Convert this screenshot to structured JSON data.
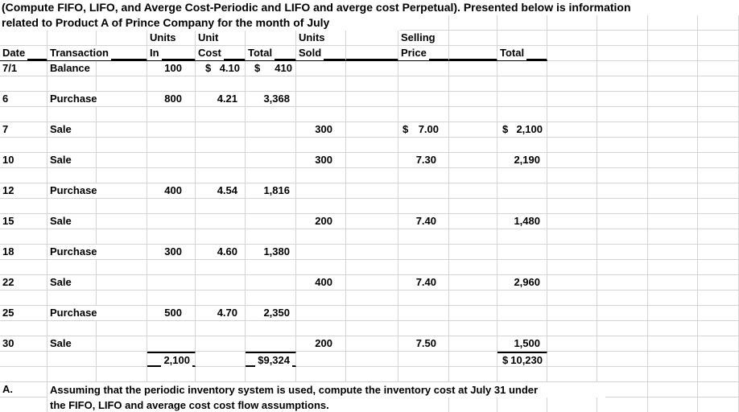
{
  "title": {
    "line1": "(Compute FIFO, LIFO, and Averge Cost-Periodic and  LIFO  and averge cost Perpetual). Presented below is information",
    "line2": "related to Product A of Prince Company for the month of July"
  },
  "table": {
    "header_row1": {
      "units_in": "Units",
      "unit_cost": "Unit",
      "units_sold": "Units",
      "selling_price": "Selling"
    },
    "header_row2": {
      "date": "Date",
      "transaction": "Transaction",
      "units_in": "In",
      "unit_cost": "Cost",
      "cost_total": "Total",
      "units_sold": "Sold",
      "selling_price": "Price",
      "sale_total": "Total"
    },
    "rows": [
      {
        "date": "7/1",
        "transaction": "Balance",
        "units_in": "100",
        "unit_cost": "$ 4.10",
        "cost_total": "$ 410"
      },
      {
        "date": "6",
        "transaction": "Purchase",
        "units_in": "800",
        "unit_cost": "4.21",
        "cost_total": "3,368"
      },
      {
        "date": "7",
        "transaction": "Sale",
        "units_sold": "300",
        "selling_price": "$ 7.00",
        "sale_total": "$ 2,100"
      },
      {
        "date": "10",
        "transaction": "Sale",
        "units_sold": "300",
        "selling_price": "7.30",
        "sale_total": "2,190"
      },
      {
        "date": "12",
        "transaction": "Purchase",
        "units_in": "400",
        "unit_cost": "4.54",
        "cost_total": "1,816"
      },
      {
        "date": "15",
        "transaction": "Sale",
        "units_sold": "200",
        "selling_price": "7.40",
        "sale_total": "1,480"
      },
      {
        "date": "18",
        "transaction": "Purchase",
        "units_in": "300",
        "unit_cost": "4.60",
        "cost_total": "1,380"
      },
      {
        "date": "22",
        "transaction": "Sale",
        "units_sold": "400",
        "selling_price": "7.40",
        "sale_total": "2,960"
      },
      {
        "date": "25",
        "transaction": "Purchase",
        "units_in": "500",
        "unit_cost": "4.70",
        "cost_total": "2,350"
      },
      {
        "date": "30",
        "transaction": "Sale",
        "units_sold": "200",
        "selling_price": "7.50",
        "sale_total": "1,500"
      }
    ],
    "totals": {
      "units_in": "2,100",
      "cost_total": "$9,324",
      "sale_total": "$ 10,230"
    }
  },
  "note": {
    "label": "A.",
    "line1": "Assuming that the periodic inventory system is used, compute the inventory cost at July 31 under",
    "line2": "the FIFO, LIFO and  average cost cost  flow assumptions."
  },
  "colors": {
    "gridline": "#d4d4d4",
    "rule": "#000000",
    "background": "#ffffff",
    "text": "#000000"
  }
}
